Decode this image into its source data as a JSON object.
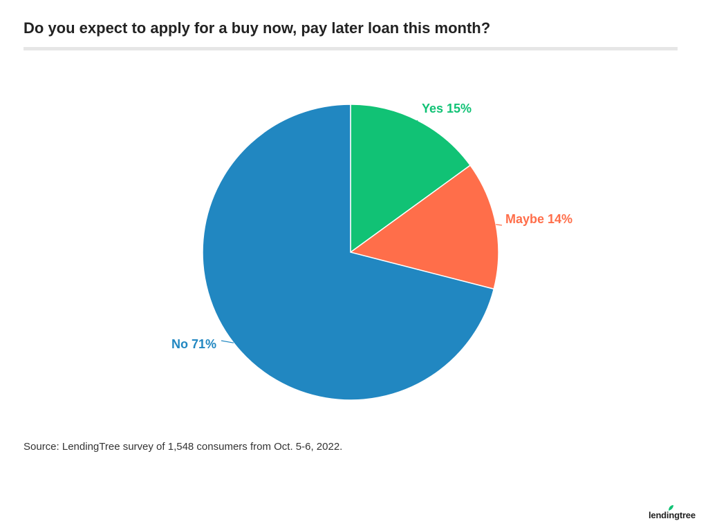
{
  "title": "Do you expect to apply for a buy now, pay later loan this month?",
  "source": "Source: LendingTree survey of 1,548 consumers from Oct. 5-6, 2022.",
  "logo_text": "lendingtree",
  "colors": {
    "yes": "#11c275",
    "maybe": "#ff6e4a",
    "no": "#2187c1"
  },
  "chart_data": {
    "type": "pie",
    "title": "Do you expect to apply for a buy now, pay later loan this month?",
    "slices": [
      {
        "name": "Yes",
        "value": 15,
        "label": "Yes 15%",
        "color": "#11c275"
      },
      {
        "name": "Maybe",
        "value": 14,
        "label": "Maybe 14%",
        "color": "#ff6e4a"
      },
      {
        "name": "No",
        "value": 71,
        "label": "No 71%",
        "color": "#2187c1"
      }
    ],
    "legend": "none"
  }
}
